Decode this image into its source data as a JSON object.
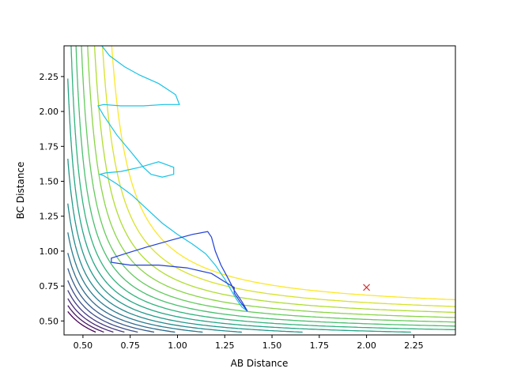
{
  "chart_data": {
    "type": "contour",
    "title": "",
    "xlabel": "AB Distance",
    "ylabel": "BC Distance",
    "xlim": [
      0.4,
      2.47
    ],
    "ylim": [
      0.4,
      2.47
    ],
    "xticks": [
      0.5,
      0.75,
      1.0,
      1.25,
      1.5,
      1.75,
      2.0,
      2.25
    ],
    "yticks": [
      0.5,
      0.75,
      1.0,
      1.25,
      1.5,
      1.75,
      2.0,
      2.25
    ],
    "xtick_labels": [
      "0.50",
      "0.75",
      "1.00",
      "1.25",
      "1.50",
      "1.75",
      "2.00",
      "2.25"
    ],
    "ytick_labels": [
      "0.50",
      "0.75",
      "1.00",
      "1.25",
      "1.50",
      "1.75",
      "2.00",
      "2.25"
    ],
    "grid": false,
    "colormap": "viridis",
    "contour_level_count": 18,
    "trajectory": {
      "color": "#1f3fd6",
      "points": [
        [
          1.37,
          0.57
        ],
        [
          1.34,
          0.6
        ],
        [
          1.31,
          0.66
        ],
        [
          1.28,
          0.73
        ],
        [
          1.25,
          0.8
        ],
        [
          1.2,
          0.9
        ],
        [
          1.15,
          0.98
        ],
        [
          1.08,
          1.05
        ],
        [
          1.0,
          1.12
        ],
        [
          0.92,
          1.2
        ],
        [
          0.84,
          1.3
        ],
        [
          0.76,
          1.4
        ],
        [
          0.68,
          1.48
        ],
        [
          0.61,
          1.54
        ],
        [
          0.59,
          1.55
        ],
        [
          0.62,
          1.56
        ],
        [
          0.7,
          1.57
        ],
        [
          0.8,
          1.6
        ],
        [
          0.9,
          1.64
        ],
        [
          0.98,
          1.6
        ],
        [
          0.98,
          1.55
        ],
        [
          0.92,
          1.53
        ],
        [
          0.86,
          1.55
        ],
        [
          0.82,
          1.6
        ],
        [
          0.76,
          1.7
        ],
        [
          0.68,
          1.83
        ],
        [
          0.61,
          1.97
        ],
        [
          0.58,
          2.04
        ],
        [
          0.61,
          2.05
        ],
        [
          0.7,
          2.04
        ],
        [
          0.82,
          2.04
        ],
        [
          0.93,
          2.05
        ],
        [
          1.01,
          2.05
        ],
        [
          0.99,
          2.12
        ],
        [
          0.9,
          2.2
        ],
        [
          0.8,
          2.26
        ],
        [
          0.72,
          2.32
        ],
        [
          0.64,
          2.4
        ],
        [
          0.6,
          2.47
        ]
      ],
      "points2": [
        [
          1.37,
          0.57
        ],
        [
          1.33,
          0.64
        ],
        [
          1.3,
          0.7
        ],
        [
          1.3,
          0.74
        ],
        [
          1.25,
          0.78
        ],
        [
          1.18,
          0.84
        ],
        [
          1.05,
          0.88
        ],
        [
          0.9,
          0.9
        ],
        [
          0.75,
          0.9
        ],
        [
          0.65,
          0.92
        ],
        [
          0.65,
          0.95
        ],
        [
          0.72,
          0.98
        ],
        [
          0.84,
          1.03
        ],
        [
          0.97,
          1.08
        ],
        [
          1.08,
          1.12
        ],
        [
          1.16,
          1.14
        ],
        [
          1.18,
          1.1
        ],
        [
          1.2,
          1.0
        ],
        [
          1.23,
          0.9
        ],
        [
          1.27,
          0.8
        ],
        [
          1.3,
          0.72
        ],
        [
          1.34,
          0.64
        ],
        [
          1.37,
          0.57
        ]
      ]
    },
    "marker": {
      "x": 2.0,
      "y": 0.74,
      "symbol": "x",
      "color": "#d62728"
    }
  }
}
